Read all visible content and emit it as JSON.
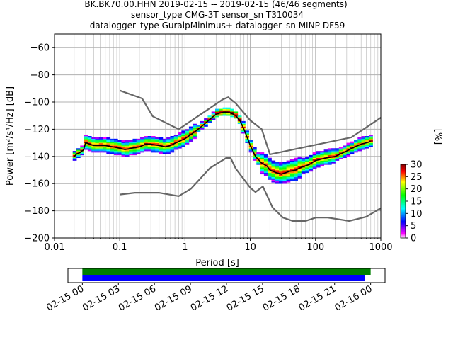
{
  "title": {
    "line1": "BK.BK70.00.HHN   2019-02-15 -- 2019-02-15  (46/46 segments)",
    "line2": "sensor_type CMG-3T sensor_sn T310034",
    "line3": "datalogger_type GuralpMinimus+ datalogger_sn MINP-DF59"
  },
  "chart_data": [
    {
      "type": "heatmap",
      "xlabel": "Period [s]",
      "ylabel": "Power [m²/s⁴/Hz] [dB]",
      "xscale": "log",
      "xlim": [
        0.01,
        1000
      ],
      "ylim": [
        -200,
        -50
      ],
      "xticks": [
        0.01,
        0.1,
        1,
        10,
        100,
        1000
      ],
      "xtick_labels": [
        "0.01",
        "0.1",
        "1",
        "10",
        "100",
        "1000"
      ],
      "yticks": [
        -200,
        -180,
        -160,
        -140,
        -120,
        -100,
        -80,
        -60
      ],
      "ytick_labels": [
        "−200",
        "−180",
        "−160",
        "−140",
        "−120",
        "−100",
        "−80",
        "−60"
      ],
      "grid": true,
      "colorbar": {
        "label": "[%]",
        "min": 0,
        "max": 30,
        "ticks": [
          0,
          5,
          10,
          15,
          20,
          25,
          30
        ],
        "tick_labels": [
          "0",
          "5",
          "10",
          "15",
          "20",
          "25",
          "30"
        ]
      },
      "series": [
        {
          "role": "noise-model-high",
          "x": [
            0.1,
            0.22,
            0.32,
            0.8,
            3.8,
            4.6,
            6.0,
            10.0,
            15.0,
            20.0,
            354.0,
            1000.0
          ],
          "y": [
            -91.5,
            -97.4,
            -110.5,
            -120.0,
            -98.0,
            -96.5,
            -101.0,
            -113.5,
            -120.0,
            -138.5,
            -126.0,
            -111.5
          ]
        },
        {
          "role": "noise-model-low",
          "x": [
            0.1,
            0.17,
            0.4,
            0.8,
            1.24,
            2.4,
            4.3,
            5.0,
            6.0,
            10.0,
            12.0,
            15.6,
            21.9,
            31.6,
            45.0,
            70.0,
            101.0,
            154.0,
            328.0,
            600.0,
            1000.0
          ],
          "y": [
            -168.0,
            -166.7,
            -166.7,
            -169.2,
            -163.7,
            -148.6,
            -141.1,
            -141.1,
            -149.0,
            -163.0,
            -166.2,
            -162.1,
            -177.5,
            -185.0,
            -187.5,
            -187.5,
            -185.0,
            -185.0,
            -187.5,
            -184.4,
            -178.0
          ]
        },
        {
          "role": "mode",
          "x": [
            0.02,
            0.022,
            0.025,
            0.028,
            0.03,
            0.035,
            0.04,
            0.05,
            0.06,
            0.08,
            0.1,
            0.12,
            0.15,
            0.2,
            0.25,
            0.3,
            0.4,
            0.5,
            0.6,
            0.8,
            1.0,
            1.5,
            2.0,
            2.5,
            3.0,
            3.5,
            4.0,
            4.5,
            5.0,
            6.0,
            7.0,
            8.0,
            10.0,
            12.0,
            15.0,
            18.0,
            20.0,
            25.0,
            30.0,
            40.0,
            50.0,
            60.0,
            80.0,
            100.0,
            150.0,
            200.0,
            300.0,
            400.0,
            500.0,
            600.0,
            700.0
          ],
          "y": [
            -140,
            -138,
            -137,
            -135,
            -130,
            -131,
            -132,
            -132,
            -132,
            -133,
            -134,
            -135,
            -134,
            -133,
            -131,
            -131,
            -132,
            -133,
            -132,
            -129,
            -127,
            -121,
            -116,
            -112,
            -109,
            -108,
            -107.5,
            -107.5,
            -108,
            -110,
            -114,
            -120,
            -132,
            -140,
            -145,
            -147,
            -150,
            -152,
            -153,
            -151,
            -150,
            -148,
            -146,
            -143,
            -141,
            -140,
            -136,
            -133,
            -131,
            -130,
            -129
          ]
        }
      ]
    },
    {
      "type": "timeline",
      "x_tick_labels": [
        "02-15 00",
        "02-15 03",
        "02-15 06",
        "02-15 09",
        "02-15 12",
        "02-15 15",
        "02-15 18",
        "02-15 21",
        "02-16 00"
      ],
      "xlim_hours": [
        -1.2,
        25.2
      ],
      "bars": [
        {
          "color": "#008000",
          "start_hours": 0.0,
          "end_hours": 24.0
        },
        {
          "color": "#0000ff",
          "start_hours": 0.0,
          "end_hours": 23.5
        }
      ]
    }
  ]
}
